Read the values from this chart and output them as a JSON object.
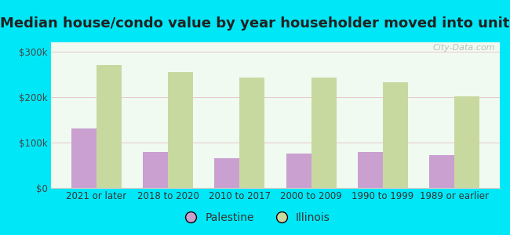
{
  "title": "Median house/condo value by year householder moved into unit",
  "categories": [
    "2021 or later",
    "2018 to 2020",
    "2010 to 2017",
    "2000 to 2009",
    "1990 to 1999",
    "1989 or earlier"
  ],
  "palestine_values": [
    130000,
    80000,
    65000,
    75000,
    80000,
    72000
  ],
  "illinois_values": [
    270000,
    255000,
    243000,
    242000,
    233000,
    202000
  ],
  "palestine_color": "#c9a0d0",
  "illinois_color": "#c8d9a0",
  "plot_bg_color": "#f0faf0",
  "outer_background": "#00e8f8",
  "ylim": [
    0,
    320000
  ],
  "yticks": [
    0,
    100000,
    200000,
    300000
  ],
  "ytick_labels": [
    "$0",
    "$100k",
    "$200k",
    "$300k"
  ],
  "legend_labels": [
    "Palestine",
    "Illinois"
  ],
  "bar_width": 0.35,
  "watermark": "City-Data.com",
  "title_fontsize": 13,
  "tick_fontsize": 8.5,
  "legend_fontsize": 10,
  "grid_color": "#e8c8c8",
  "title_color": "#222222"
}
